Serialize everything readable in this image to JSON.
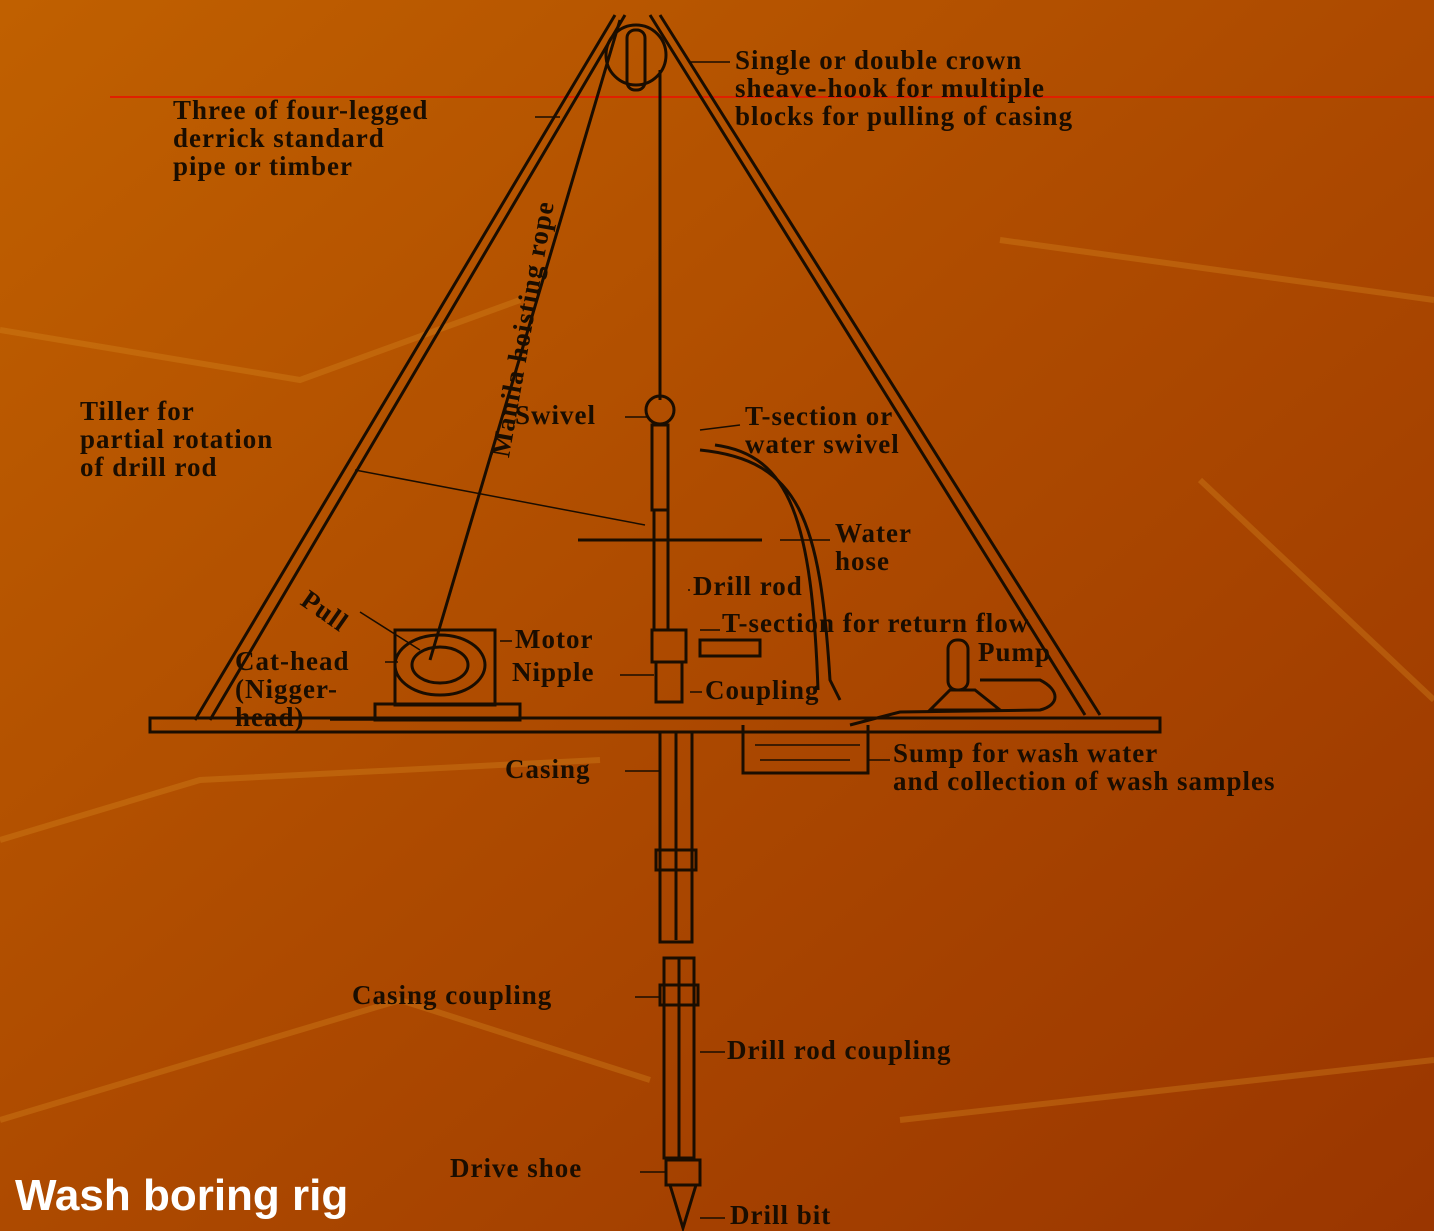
{
  "title": "Wash boring rig",
  "labels": [
    {
      "lines": [
        "Single or double crown",
        "sheave-hook for multiple",
        "blocks for pulling of casing"
      ]
    },
    {
      "lines": [
        "Three of four-legged",
        "derrick standard",
        "pipe or timber"
      ]
    },
    {
      "lines": [
        "Manila hoisting rope"
      ]
    },
    {
      "lines": [
        "Tiller for",
        "partial rotation",
        "of drill rod"
      ]
    },
    {
      "lines": [
        "Swivel"
      ]
    },
    {
      "lines": [
        "T-section or",
        "water swivel"
      ]
    },
    {
      "lines": [
        "Water",
        "hose"
      ]
    },
    {
      "lines": [
        "Drill rod"
      ]
    },
    {
      "lines": [
        "Pull"
      ]
    },
    {
      "lines": [
        "T-section for return flow"
      ]
    },
    {
      "lines": [
        "Motor"
      ]
    },
    {
      "lines": [
        "Pump"
      ]
    },
    {
      "lines": [
        "Nipple"
      ]
    },
    {
      "lines": [
        "Cat-head",
        "(Nigger-",
        "head)"
      ]
    },
    {
      "lines": [
        "Coupling"
      ]
    },
    {
      "lines": [
        "Sump for wash water",
        "and collection of wash samples"
      ]
    },
    {
      "lines": [
        "Casing"
      ]
    },
    {
      "lines": [
        "Casing coupling"
      ]
    },
    {
      "lines": [
        "Drill rod coupling"
      ]
    },
    {
      "lines": [
        "Drive shoe"
      ]
    },
    {
      "lines": [
        "Drill bit"
      ]
    }
  ]
}
